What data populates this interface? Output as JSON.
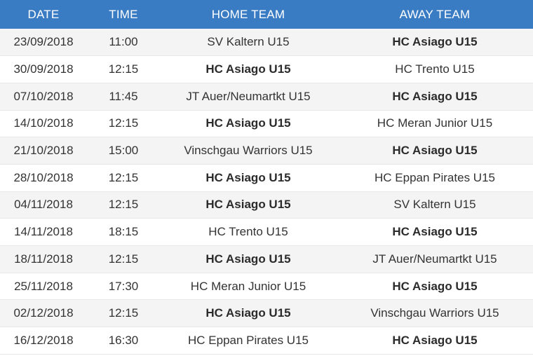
{
  "headers": {
    "date": "DATE",
    "time": "TIME",
    "home": "HOME TEAM",
    "away": "AWAY TEAM"
  },
  "games": [
    {
      "date": "23/09/2018",
      "time": "11:00",
      "home": "SV Kaltern U15",
      "away": "HC Asiago U15",
      "featured": "away"
    },
    {
      "date": "30/09/2018",
      "time": "12:15",
      "home": "HC Asiago U15",
      "away": "HC Trento U15",
      "featured": "home"
    },
    {
      "date": "07/10/2018",
      "time": "11:45",
      "home": "JT Auer/Neumartkt U15",
      "away": "HC Asiago U15",
      "featured": "away"
    },
    {
      "date": "14/10/2018",
      "time": "12:15",
      "home": "HC Asiago U15",
      "away": "HC Meran Junior U15",
      "featured": "home"
    },
    {
      "date": "21/10/2018",
      "time": "15:00",
      "home": "Vinschgau Warriors U15",
      "away": "HC Asiago U15",
      "featured": "away"
    },
    {
      "date": "28/10/2018",
      "time": "12:15",
      "home": "HC Asiago U15",
      "away": "HC Eppan Pirates U15",
      "featured": "home"
    },
    {
      "date": "04/11/2018",
      "time": "12:15",
      "home": "HC Asiago U15",
      "away": "SV Kaltern U15",
      "featured": "home"
    },
    {
      "date": "14/11/2018",
      "time": "18:15",
      "home": "HC Trento U15",
      "away": "HC Asiago U15",
      "featured": "away"
    },
    {
      "date": "18/11/2018",
      "time": "12:15",
      "home": "HC Asiago U15",
      "away": "JT Auer/Neumartkt U15",
      "featured": "home"
    },
    {
      "date": "25/11/2018",
      "time": "17:30",
      "home": "HC Meran Junior U15",
      "away": "HC Asiago U15",
      "featured": "away"
    },
    {
      "date": "02/12/2018",
      "time": "12:15",
      "home": "HC Asiago U15",
      "away": "Vinschgau Warriors U15",
      "featured": "home"
    },
    {
      "date": "16/12/2018",
      "time": "16:30",
      "home": "HC Eppan Pirates U15",
      "away": "HC Asiago U15",
      "featured": "away"
    }
  ],
  "colors": {
    "header_bg": "#3a7cc3",
    "header_text": "#ffffff",
    "row_alt_bg": "#f4f4f4",
    "text": "#333333"
  }
}
